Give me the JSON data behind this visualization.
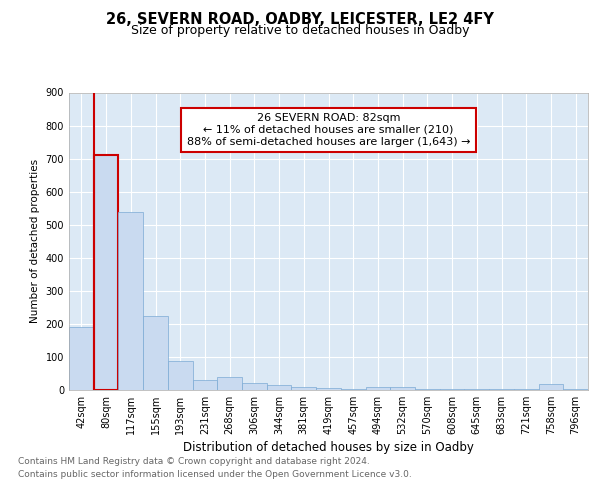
{
  "title": "26, SEVERN ROAD, OADBY, LEICESTER, LE2 4FY",
  "subtitle": "Size of property relative to detached houses in Oadby",
  "xlabel": "Distribution of detached houses by size in Oadby",
  "ylabel": "Number of detached properties",
  "categories": [
    "42sqm",
    "80sqm",
    "117sqm",
    "155sqm",
    "193sqm",
    "231sqm",
    "268sqm",
    "306sqm",
    "344sqm",
    "381sqm",
    "419sqm",
    "457sqm",
    "494sqm",
    "532sqm",
    "570sqm",
    "608sqm",
    "645sqm",
    "683sqm",
    "721sqm",
    "758sqm",
    "796sqm"
  ],
  "values": [
    190,
    710,
    540,
    225,
    88,
    30,
    40,
    22,
    15,
    10,
    6,
    3,
    10,
    10,
    3,
    2,
    2,
    2,
    2,
    18,
    2
  ],
  "bar_color": "#c9daf0",
  "bar_edge_color": "#7baad4",
  "highlight_bar_index": 1,
  "highlight_edge_color": "#cc0000",
  "vline_color": "#cc0000",
  "annotation_text": "26 SEVERN ROAD: 82sqm\n← 11% of detached houses are smaller (210)\n88% of semi-detached houses are larger (1,643) →",
  "annotation_box_color": "#ffffff",
  "annotation_box_edge": "#cc0000",
  "ylim": [
    0,
    900
  ],
  "yticks": [
    0,
    100,
    200,
    300,
    400,
    500,
    600,
    700,
    800,
    900
  ],
  "footer_line1": "Contains HM Land Registry data © Crown copyright and database right 2024.",
  "footer_line2": "Contains public sector information licensed under the Open Government Licence v3.0.",
  "bg_color": "#dce9f5",
  "title_fontsize": 10.5,
  "subtitle_fontsize": 9,
  "xlabel_fontsize": 8.5,
  "ylabel_fontsize": 7.5,
  "tick_fontsize": 7,
  "annotation_fontsize": 8,
  "footer_fontsize": 6.5
}
